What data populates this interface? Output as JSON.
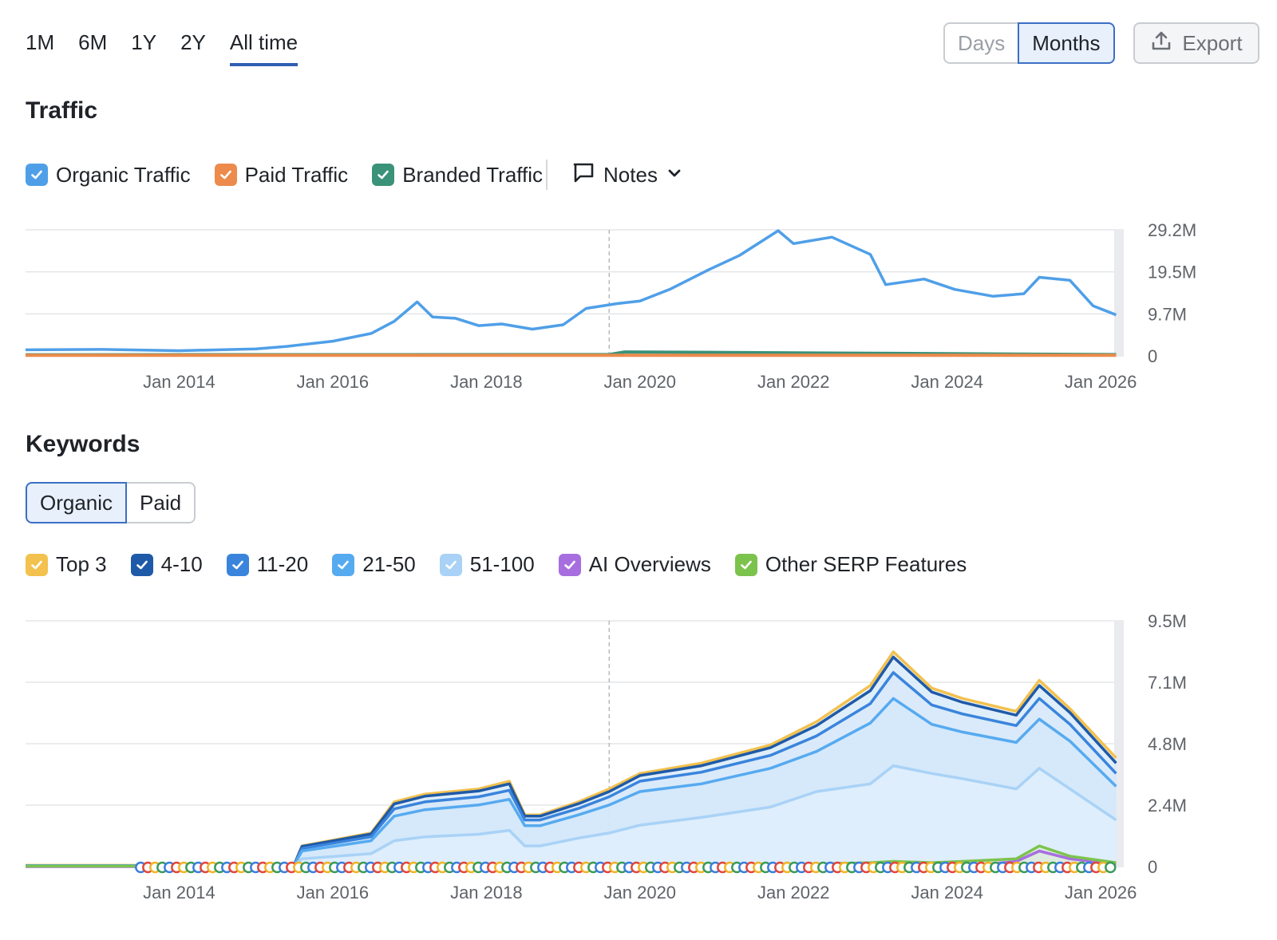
{
  "toolbar": {
    "ranges": [
      "1M",
      "6M",
      "1Y",
      "2Y",
      "All time"
    ],
    "active_range": "All time",
    "granularity": [
      "Days",
      "Months"
    ],
    "active_granularity": "Months",
    "export_label": "Export"
  },
  "traffic": {
    "title": "Traffic",
    "legend": [
      {
        "label": "Organic Traffic",
        "color": "#4f9fe8"
      },
      {
        "label": "Paid Traffic",
        "color": "#ec8b4c"
      },
      {
        "label": "Branded Traffic",
        "color": "#3a9278"
      }
    ],
    "notes_label": "Notes"
  },
  "keywords": {
    "title": "Keywords",
    "tabs": [
      "Organic",
      "Paid"
    ],
    "active_tab": "Organic",
    "legend": [
      {
        "label": "Top 3",
        "color": "#f2c14e"
      },
      {
        "label": "4-10",
        "color": "#1f5aa8"
      },
      {
        "label": "11-20",
        "color": "#3a84dc"
      },
      {
        "label": "21-50",
        "color": "#56aaf0"
      },
      {
        "label": "51-100",
        "color": "#a9d2f6"
      },
      {
        "label": "AI Overviews",
        "color": "#a76ee0"
      },
      {
        "label": "Other SERP Features",
        "color": "#7cc34d"
      }
    ]
  },
  "chart_data": [
    {
      "type": "line",
      "title": "Traffic",
      "x_ticks": [
        "Jan 2014",
        "Jan 2016",
        "Jan 2018",
        "Jan 2020",
        "Jan 2022",
        "Jan 2024",
        "Jan 2026"
      ],
      "y_ticks": [
        "0",
        "9.7M",
        "19.5M",
        "29.2M"
      ],
      "ylim": [
        0,
        29200000
      ],
      "xlim": [
        2012.0,
        2026.3
      ],
      "series": [
        {
          "name": "Organic Traffic",
          "color": "#4f9fe8",
          "x": [
            2012.0,
            2013.0,
            2014.0,
            2015.0,
            2015.4,
            2016.0,
            2016.5,
            2016.8,
            2017.1,
            2017.3,
            2017.6,
            2017.9,
            2018.2,
            2018.6,
            2019.0,
            2019.3,
            2019.7,
            2020.0,
            2020.4,
            2020.9,
            2021.3,
            2021.8,
            2022.0,
            2022.5,
            2023.0,
            2023.2,
            2023.7,
            2024.1,
            2024.6,
            2025.0,
            2025.2,
            2025.6,
            2025.9,
            2026.2
          ],
          "y": [
            1400000,
            1500000,
            1200000,
            1600000,
            2200000,
            3400000,
            5200000,
            8000000,
            12500000,
            9000000,
            8700000,
            7000000,
            7400000,
            6200000,
            7200000,
            11000000,
            12100000,
            12700000,
            15500000,
            20000000,
            23300000,
            29000000,
            26000000,
            27500000,
            23500000,
            16500000,
            17800000,
            15400000,
            13800000,
            14400000,
            18200000,
            17500000,
            11600000,
            9500000
          ]
        },
        {
          "name": "Paid Traffic",
          "color": "#ec8b4c",
          "x": [
            2012.0,
            2026.2
          ],
          "y": [
            150000,
            150000
          ]
        },
        {
          "name": "Branded Traffic",
          "color": "#3a9278",
          "x": [
            2012.0,
            2019.6,
            2019.8,
            2026.2
          ],
          "y": [
            250000,
            300000,
            900000,
            300000
          ]
        }
      ]
    },
    {
      "type": "area",
      "title": "Keywords",
      "x_ticks": [
        "Jan 2014",
        "Jan 2016",
        "Jan 2018",
        "Jan 2020",
        "Jan 2022",
        "Jan 2024",
        "Jan 2026"
      ],
      "y_ticks": [
        "0",
        "2.4M",
        "4.8M",
        "7.1M",
        "9.5M"
      ],
      "ylim": [
        0,
        9500000
      ],
      "xlim": [
        2012.0,
        2026.3
      ],
      "x": [
        2012.0,
        2014.0,
        2015.5,
        2015.6,
        2016.5,
        2016.8,
        2017.2,
        2017.9,
        2018.3,
        2018.5,
        2018.7,
        2019.2,
        2019.6,
        2020.0,
        2020.8,
        2021.7,
        2022.3,
        2023.0,
        2023.3,
        2023.8,
        2024.2,
        2024.9,
        2025.2,
        2025.6,
        2026.2
      ],
      "series": [
        {
          "name": "Top 3",
          "color": "#f2c14e",
          "values": [
            50000,
            50000,
            100000,
            800000,
            1300000,
            2500000,
            2800000,
            3000000,
            3300000,
            2000000,
            2000000,
            2500000,
            3000000,
            3600000,
            4000000,
            4700000,
            5600000,
            7000000,
            8300000,
            6900000,
            6500000,
            6000000,
            7200000,
            6100000,
            4200000
          ]
        },
        {
          "name": "4-10",
          "color": "#1f5aa8",
          "values": [
            40000,
            40000,
            90000,
            780000,
            1260000,
            2420000,
            2720000,
            2920000,
            3200000,
            1950000,
            1950000,
            2430000,
            2900000,
            3520000,
            3900000,
            4600000,
            5450000,
            6800000,
            8100000,
            6750000,
            6350000,
            5850000,
            7000000,
            5950000,
            4000000
          ]
        },
        {
          "name": "11-20",
          "color": "#3a84dc",
          "values": [
            35000,
            35000,
            80000,
            700000,
            1150000,
            2230000,
            2500000,
            2700000,
            2950000,
            1800000,
            1800000,
            2250000,
            2700000,
            3300000,
            3650000,
            4300000,
            5050000,
            6300000,
            7500000,
            6250000,
            5900000,
            5450000,
            6500000,
            5500000,
            3600000
          ]
        },
        {
          "name": "21-50",
          "color": "#56aaf0",
          "values": [
            30000,
            30000,
            70000,
            600000,
            1000000,
            1950000,
            2200000,
            2380000,
            2600000,
            1580000,
            1580000,
            2000000,
            2380000,
            2900000,
            3200000,
            3800000,
            4450000,
            5550000,
            6500000,
            5500000,
            5200000,
            4800000,
            5700000,
            4850000,
            3100000
          ]
        },
        {
          "name": "51-100",
          "color": "#a9d2f6",
          "values": [
            20000,
            20000,
            50000,
            300000,
            500000,
            1000000,
            1150000,
            1250000,
            1400000,
            800000,
            800000,
            1100000,
            1300000,
            1600000,
            1900000,
            2300000,
            2900000,
            3200000,
            3900000,
            3600000,
            3400000,
            3000000,
            3800000,
            3000000,
            1800000
          ]
        },
        {
          "name": "AI Overviews",
          "color": "#a76ee0",
          "values": [
            0,
            0,
            0,
            0,
            0,
            0,
            0,
            0,
            0,
            0,
            0,
            0,
            0,
            0,
            0,
            0,
            0,
            0,
            0,
            0,
            0,
            200000,
            600000,
            300000,
            100000
          ]
        },
        {
          "name": "Other SERP Features",
          "color": "#7cc34d",
          "values": [
            20000,
            20000,
            20000,
            20000,
            30000,
            40000,
            50000,
            50000,
            50000,
            50000,
            50000,
            50000,
            60000,
            60000,
            60000,
            80000,
            100000,
            150000,
            200000,
            150000,
            200000,
            300000,
            800000,
            400000,
            150000
          ]
        }
      ]
    }
  ]
}
